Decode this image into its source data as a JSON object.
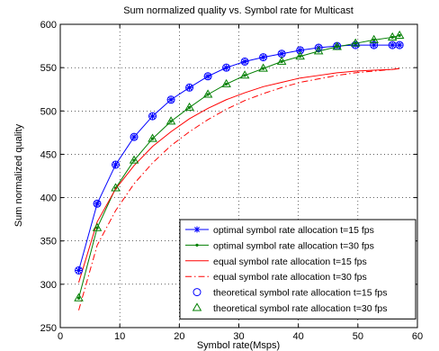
{
  "chart_data": {
    "type": "line",
    "title": "Sum normalized quality vs. Symbol rate for Multicast",
    "xlabel": "Symbol rate(Msps)",
    "ylabel": "Sum normalized quality",
    "xlim": [
      0,
      60
    ],
    "ylim": [
      250,
      600
    ],
    "xticks": [
      0,
      10,
      20,
      30,
      40,
      50,
      60
    ],
    "yticks": [
      250,
      300,
      350,
      400,
      450,
      500,
      550,
      600
    ],
    "grid": "on",
    "legend_position": "lower-right",
    "series": [
      {
        "name": "optimal symbol rate allocation t=15 fps",
        "color": "#0000ff",
        "line": "solid",
        "marker": "star",
        "x": [
          3.1,
          6.2,
          9.3,
          12.4,
          15.5,
          18.6,
          21.7,
          24.8,
          27.9,
          31.0,
          34.1,
          37.2,
          40.3,
          43.4,
          46.5,
          49.6,
          52.7,
          55.8,
          57.0
        ],
        "y": [
          316,
          393,
          438,
          470,
          494,
          513,
          527,
          540,
          550,
          557,
          562,
          566,
          570,
          573,
          575,
          576,
          576,
          576,
          576
        ]
      },
      {
        "name": "optimal symbol rate allocation t=30 fps",
        "color": "#007f00",
        "line": "solid",
        "marker": "point",
        "x": [
          3.1,
          6.2,
          9.3,
          12.4,
          15.5,
          18.6,
          21.7,
          24.8,
          27.9,
          31.0,
          34.1,
          37.2,
          40.3,
          43.4,
          46.5,
          49.6,
          52.7,
          55.8,
          57.0
        ],
        "y": [
          284,
          365,
          411,
          443,
          468,
          488,
          504,
          519,
          531,
          541,
          549,
          557,
          563,
          569,
          574,
          578,
          582,
          585,
          587
        ]
      },
      {
        "name": "equal symbol rate allocation t=15 fps",
        "color": "#ff0000",
        "line": "solid",
        "marker": "none",
        "x": [
          3.1,
          6.2,
          9.3,
          12.4,
          15.5,
          18.6,
          21.7,
          24.8,
          27.9,
          31.0,
          34.1,
          37.2,
          40.3,
          43.4,
          46.5,
          49.6,
          52.7,
          55.8,
          57.0
        ],
        "y": [
          302,
          372,
          410,
          437,
          459,
          476,
          491,
          503,
          513,
          521,
          528,
          533,
          538,
          541,
          544,
          546,
          547,
          548,
          549
        ]
      },
      {
        "name": "equal symbol rate allocation t=30 fps",
        "color": "#ff0000",
        "line": "dashdot",
        "marker": "none",
        "x": [
          3.1,
          6.2,
          9.3,
          12.4,
          15.5,
          18.6,
          21.7,
          24.8,
          27.9,
          31.0,
          34.1,
          37.2,
          40.3,
          43.4,
          46.5,
          49.6,
          52.7,
          55.8,
          57.0
        ],
        "y": [
          270,
          345,
          385,
          416,
          440,
          460,
          476,
          490,
          502,
          512,
          520,
          527,
          533,
          537,
          541,
          544,
          546,
          548,
          549
        ]
      },
      {
        "name": "theoretical symbol rate allocation t=15 fps",
        "color": "#0000ff",
        "line": "none",
        "marker": "circle",
        "x": [
          3.1,
          6.2,
          9.3,
          12.4,
          15.5,
          18.6,
          21.7,
          24.8,
          27.9,
          31.0,
          34.1,
          37.2,
          40.3,
          43.4,
          46.5,
          49.6,
          52.7,
          55.8,
          57.0
        ],
        "y": [
          316,
          393,
          438,
          470,
          494,
          513,
          527,
          540,
          550,
          557,
          562,
          566,
          570,
          573,
          575,
          576,
          576,
          576,
          576
        ]
      },
      {
        "name": "theoretical symbol rate allocation t=30 fps",
        "color": "#007f00",
        "line": "none",
        "marker": "triangle",
        "x": [
          3.1,
          6.2,
          9.3,
          12.4,
          15.5,
          18.6,
          21.7,
          24.8,
          27.9,
          31.0,
          34.1,
          37.2,
          40.3,
          43.4,
          46.5,
          49.6,
          52.7,
          55.8,
          57.0
        ],
        "y": [
          284,
          365,
          411,
          443,
          468,
          488,
          504,
          519,
          531,
          541,
          549,
          557,
          563,
          569,
          574,
          578,
          582,
          585,
          587
        ]
      }
    ]
  }
}
